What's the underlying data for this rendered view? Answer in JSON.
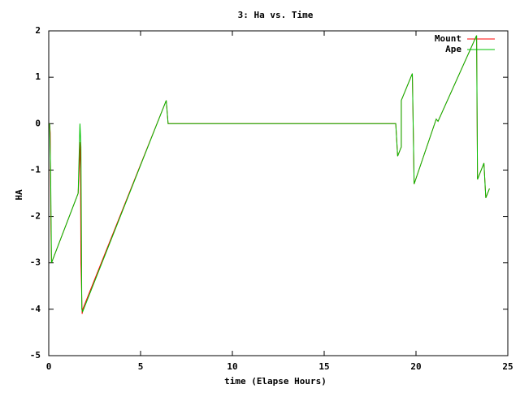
{
  "chart_data": {
    "type": "line",
    "title": "3: Ha vs. Time",
    "x_label": "time (Elapse Hours)",
    "y_label": "HA",
    "xlim": [
      0,
      25
    ],
    "xticks": [
      0,
      5,
      10,
      15,
      20,
      25
    ],
    "ylim": [
      -5,
      2
    ],
    "yticks": [
      -5,
      -4,
      -3,
      -2,
      -1,
      0,
      1,
      2
    ],
    "legend": "top-right",
    "series": [
      {
        "name": "Mount",
        "color": "#ff0000",
        "x": [
          0.05,
          0.08,
          0.12,
          0.15,
          1.6,
          1.72,
          1.75,
          1.82,
          1.85,
          6.4,
          6.5,
          18.9,
          19.0,
          19.2,
          19.2,
          19.8,
          19.85,
          19.9,
          21.1,
          21.2,
          23.3,
          23.35,
          23.7,
          23.8,
          24.0
        ],
        "values": [
          0,
          -0.2,
          -2.3,
          -3.0,
          -1.5,
          -0.4,
          -3.0,
          -4.1,
          -4.0,
          0.5,
          0,
          0,
          -0.7,
          -0.5,
          0.5,
          1.08,
          -0.1,
          -1.3,
          0.1,
          0.05,
          1.9,
          -1.2,
          -0.85,
          -1.6,
          -1.4
        ]
      },
      {
        "name": "Ape",
        "color": "#00c000",
        "x": [
          0.05,
          0.1,
          0.15,
          1.6,
          1.7,
          1.75,
          1.8,
          1.85,
          6.4,
          6.5,
          18.9,
          19.0,
          19.2,
          19.2,
          19.8,
          19.85,
          19.9,
          21.1,
          21.2,
          23.3,
          23.35,
          23.7,
          23.8,
          24.0
        ],
        "values": [
          0,
          -1.0,
          -3.0,
          -1.5,
          0,
          -0.5,
          -4.0,
          -4.05,
          0.5,
          0,
          0,
          -0.7,
          -0.5,
          0.5,
          1.08,
          -0.1,
          -1.3,
          0.1,
          0.05,
          1.9,
          -1.2,
          -0.85,
          -1.6,
          -1.4
        ]
      }
    ]
  }
}
